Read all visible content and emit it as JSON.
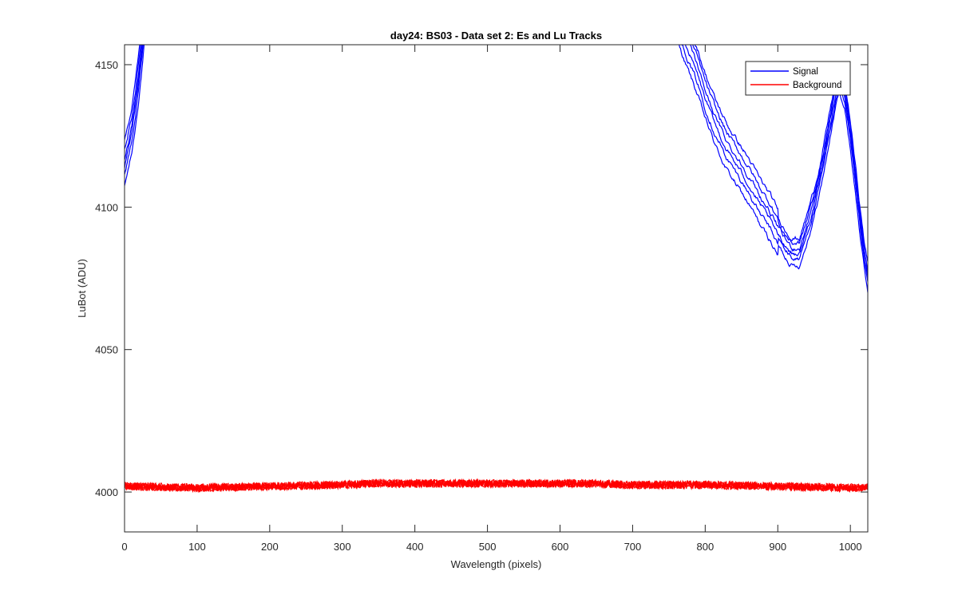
{
  "chart_data": {
    "type": "line",
    "title": "day24: BS03 - Data set 2: Es and Lu Tracks",
    "xlabel": "Wavelength (pixels)",
    "ylabel": "LuBot (ADU)",
    "xlim": [
      0,
      1024
    ],
    "ylim": [
      3986,
      4157
    ],
    "xticks": [
      0,
      100,
      200,
      300,
      400,
      500,
      600,
      700,
      800,
      900,
      1000
    ],
    "yticks": [
      4000,
      4050,
      4100,
      4150
    ],
    "grid": false,
    "legend_position": "top-right",
    "series": [
      {
        "name": "Signal",
        "color": "#0000ff",
        "tracks": 6,
        "x": [
          0,
          5,
          10,
          15,
          20,
          25,
          28,
          30,
          740,
          760,
          775,
          790,
          800,
          815,
          830,
          845,
          860,
          875,
          890,
          900,
          910,
          920,
          930,
          940,
          950,
          960,
          968,
          975,
          980,
          985,
          992,
          1000,
          1008,
          1015,
          1020,
          1024
        ],
        "values": [
          4116,
          4122,
          4128,
          4137,
          4148,
          4160,
          4168,
          4175,
          4178,
          4168,
          4158,
          4148,
          4140,
          4130,
          4122,
          4116,
          4110,
          4103,
          4097,
          4092,
          4088,
          4085,
          4085,
          4093,
          4102,
          4113,
          4124,
          4134,
          4141,
          4146,
          4140,
          4126,
          4108,
          4092,
          4082,
          4076
        ]
      },
      {
        "name": "Background",
        "color": "#ff0000",
        "tracks": 6,
        "x": [
          0,
          100,
          200,
          300,
          340,
          400,
          500,
          600,
          650,
          700,
          800,
          900,
          1000,
          1024
        ],
        "values": [
          4002,
          4001.5,
          4002,
          4002.5,
          4003,
          4003,
          4003,
          4003,
          4003,
          4002.5,
          4002.5,
          4002,
          4001.5,
          4001.5
        ],
        "noise_amplitude": 1.4
      }
    ]
  }
}
